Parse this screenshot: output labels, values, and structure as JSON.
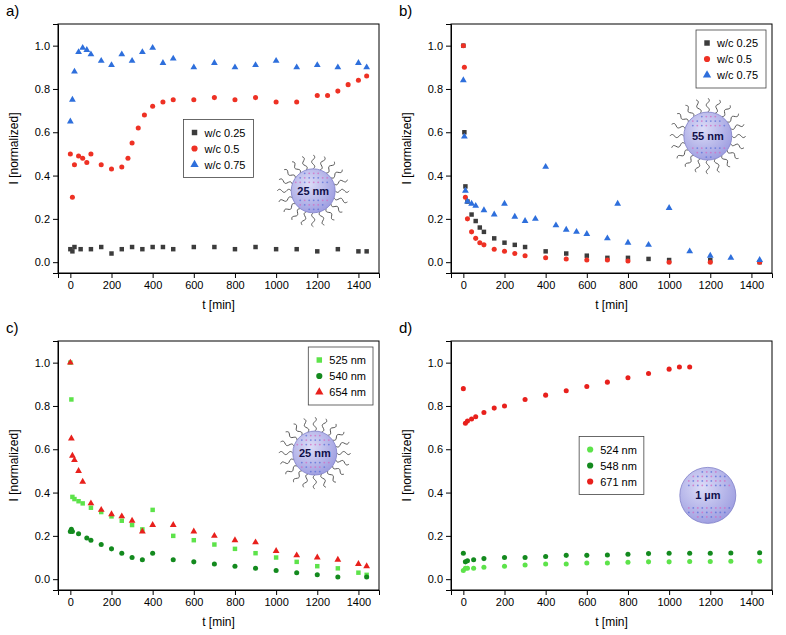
{
  "chart_data": [
    {
      "type": "scatter",
      "panel_label": "a)",
      "inset_label": "25 nm",
      "x_label": "t [min]",
      "y_label": "I [normalized]",
      "xlim": [
        -60,
        1500
      ],
      "ylim": [
        -0.05,
        1.1
      ],
      "xticks": [
        0,
        200,
        400,
        600,
        800,
        1000,
        1200,
        1400
      ],
      "yticks": [
        {
          "value": 0,
          "label": "0.0"
        },
        {
          "value": 0.2,
          "label": "0.2"
        },
        {
          "value": 0.4,
          "label": "0.4"
        },
        {
          "value": 0.6,
          "label": "0.6"
        },
        {
          "value": 0.8,
          "label": "0.8"
        },
        {
          "value": 1,
          "label": "1.0"
        }
      ],
      "grid": false,
      "legend": "center",
      "series": [
        {
          "name": "w/c 0.25",
          "color": "#3c3c3c",
          "marker": "square",
          "x": [
            0,
            10,
            20,
            50,
            100,
            150,
            200,
            250,
            300,
            350,
            400,
            450,
            500,
            600,
            700,
            800,
            900,
            1000,
            1100,
            1200,
            1300,
            1400,
            1440
          ],
          "values": [
            0.06,
            0.05,
            0.07,
            0.06,
            0.06,
            0.07,
            0.04,
            0.06,
            0.07,
            0.06,
            0.07,
            0.07,
            0.06,
            0.07,
            0.07,
            0.06,
            0.07,
            0.06,
            0.06,
            0.05,
            0.06,
            0.05,
            0.05
          ]
        },
        {
          "name": "w/c 0.5",
          "color": "#ee3124",
          "marker": "circle",
          "x": [
            0,
            10,
            20,
            40,
            60,
            80,
            100,
            150,
            200,
            250,
            280,
            300,
            330,
            360,
            400,
            450,
            500,
            600,
            700,
            800,
            900,
            1000,
            1100,
            1200,
            1250,
            1300,
            1350,
            1400,
            1440
          ],
          "values": [
            0.5,
            0.3,
            0.45,
            0.49,
            0.48,
            0.46,
            0.5,
            0.45,
            0.43,
            0.44,
            0.48,
            0.55,
            0.62,
            0.68,
            0.72,
            0.74,
            0.75,
            0.75,
            0.76,
            0.75,
            0.76,
            0.74,
            0.74,
            0.77,
            0.77,
            0.79,
            0.82,
            0.84,
            0.86
          ]
        },
        {
          "name": "w/c 0.75",
          "color": "#2e6fdc",
          "marker": "triangle",
          "x": [
            0,
            10,
            20,
            40,
            60,
            80,
            100,
            150,
            200,
            250,
            300,
            350,
            400,
            450,
            500,
            600,
            700,
            800,
            900,
            1000,
            1100,
            1200,
            1300,
            1400,
            1440
          ],
          "values": [
            0.65,
            0.75,
            0.88,
            0.97,
            0.99,
            0.98,
            0.96,
            0.93,
            0.91,
            0.96,
            0.93,
            0.97,
            0.99,
            0.92,
            0.94,
            0.9,
            0.92,
            0.9,
            0.91,
            0.93,
            0.9,
            0.91,
            0.9,
            0.92,
            0.9
          ]
        }
      ]
    },
    {
      "type": "scatter",
      "panel_label": "b)",
      "inset_label": "55 nm",
      "x_label": "t [min]",
      "y_label": "I [normalized]",
      "xlim": [
        -60,
        1500
      ],
      "ylim": [
        -0.05,
        1.1
      ],
      "xticks": [
        0,
        200,
        400,
        600,
        800,
        1000,
        1200,
        1400
      ],
      "yticks": [
        {
          "value": 0,
          "label": "0.0"
        },
        {
          "value": 0.2,
          "label": "0.2"
        },
        {
          "value": 0.4,
          "label": "0.4"
        },
        {
          "value": 0.6,
          "label": "0.6"
        },
        {
          "value": 0.8,
          "label": "0.8"
        },
        {
          "value": 1,
          "label": "1.0"
        }
      ],
      "grid": false,
      "legend": "upper right",
      "series": [
        {
          "name": "w/c 0.25",
          "color": "#3c3c3c",
          "marker": "square",
          "x": [
            0,
            5,
            10,
            20,
            40,
            60,
            80,
            100,
            150,
            200,
            250,
            300,
            400,
            500,
            600,
            700,
            800,
            900,
            1000,
            1200,
            1440
          ],
          "values": [
            1.0,
            0.6,
            0.35,
            0.28,
            0.22,
            0.19,
            0.16,
            0.14,
            0.11,
            0.09,
            0.08,
            0.07,
            0.05,
            0.04,
            0.03,
            0.02,
            0.02,
            0.015,
            0.01,
            0.01,
            0.0
          ]
        },
        {
          "name": "w/c 0.5",
          "color": "#ee3124",
          "marker": "circle",
          "x": [
            0,
            5,
            10,
            20,
            40,
            60,
            80,
            100,
            150,
            200,
            250,
            300,
            400,
            500,
            600,
            700,
            800,
            1000,
            1200,
            1440
          ],
          "values": [
            1.0,
            0.9,
            0.3,
            0.2,
            0.14,
            0.11,
            0.09,
            0.08,
            0.06,
            0.05,
            0.04,
            0.03,
            0.02,
            0.015,
            0.01,
            0.01,
            0.005,
            0.0,
            0.0,
            0.0
          ]
        },
        {
          "name": "w/c 0.75",
          "color": "#2e6fdc",
          "marker": "triangle",
          "x": [
            0,
            5,
            10,
            20,
            40,
            60,
            100,
            150,
            200,
            250,
            300,
            350,
            400,
            450,
            500,
            550,
            600,
            700,
            750,
            800,
            900,
            1000,
            1100,
            1200,
            1300,
            1440
          ],
          "values": [
            0.84,
            0.58,
            0.33,
            0.28,
            0.27,
            0.26,
            0.24,
            0.22,
            0.27,
            0.21,
            0.19,
            0.2,
            0.44,
            0.17,
            0.15,
            0.14,
            0.13,
            0.11,
            0.27,
            0.09,
            0.08,
            0.25,
            0.05,
            0.03,
            0.02,
            0.01
          ]
        }
      ]
    },
    {
      "type": "scatter",
      "panel_label": "c)",
      "inset_label": "25 nm",
      "x_label": "t [min]",
      "y_label": "I [normalized]",
      "xlim": [
        -60,
        1500
      ],
      "ylim": [
        -0.05,
        1.1
      ],
      "xticks": [
        0,
        200,
        400,
        600,
        800,
        1000,
        1200,
        1400
      ],
      "yticks": [
        {
          "value": 0,
          "label": "0.0"
        },
        {
          "value": 0.2,
          "label": "0.2"
        },
        {
          "value": 0.4,
          "label": "0.4"
        },
        {
          "value": 0.6,
          "label": "0.6"
        },
        {
          "value": 0.8,
          "label": "0.8"
        },
        {
          "value": 1,
          "label": "1.0"
        }
      ],
      "grid": false,
      "legend": "upper right",
      "series": [
        {
          "name": "525 nm",
          "color": "#5de34a",
          "marker": "square",
          "x": [
            0,
            5,
            10,
            20,
            40,
            60,
            100,
            150,
            200,
            250,
            300,
            350,
            400,
            500,
            600,
            700,
            800,
            900,
            1000,
            1100,
            1200,
            1300,
            1400,
            1440
          ],
          "values": [
            1.0,
            0.83,
            0.38,
            0.37,
            0.36,
            0.35,
            0.33,
            0.31,
            0.29,
            0.27,
            0.25,
            0.23,
            0.32,
            0.2,
            0.18,
            0.16,
            0.14,
            0.12,
            0.1,
            0.08,
            0.06,
            0.05,
            0.03,
            0.02
          ]
        },
        {
          "name": "540 nm",
          "color": "#138a1e",
          "marker": "circle",
          "x": [
            0,
            5,
            10,
            40,
            80,
            100,
            150,
            200,
            250,
            300,
            350,
            400,
            500,
            600,
            700,
            800,
            900,
            1000,
            1100,
            1200,
            1300,
            1440
          ],
          "values": [
            0.22,
            0.23,
            0.22,
            0.21,
            0.19,
            0.18,
            0.16,
            0.14,
            0.12,
            0.1,
            0.09,
            0.12,
            0.09,
            0.08,
            0.07,
            0.06,
            0.05,
            0.04,
            0.03,
            0.02,
            0.01,
            0.01
          ]
        },
        {
          "name": "654 nm",
          "color": "#e8201c",
          "marker": "triangle",
          "x": [
            0,
            5,
            10,
            20,
            40,
            60,
            100,
            150,
            200,
            250,
            300,
            350,
            400,
            500,
            600,
            700,
            800,
            900,
            1000,
            1100,
            1200,
            1300,
            1400,
            1440
          ],
          "values": [
            1.0,
            0.65,
            0.57,
            0.55,
            0.5,
            0.45,
            0.35,
            0.32,
            0.3,
            0.29,
            0.27,
            0.22,
            0.25,
            0.25,
            0.22,
            0.2,
            0.18,
            0.17,
            0.13,
            0.11,
            0.1,
            0.09,
            0.07,
            0.06
          ]
        }
      ]
    },
    {
      "type": "scatter",
      "panel_label": "d)",
      "inset_label": "1 µm",
      "x_label": "t [min]",
      "y_label": "I [normalized]",
      "xlim": [
        -60,
        1500
      ],
      "ylim": [
        -0.05,
        1.1
      ],
      "xticks": [
        0,
        200,
        400,
        600,
        800,
        1000,
        1200,
        1400
      ],
      "yticks": [
        {
          "value": 0,
          "label": "0.0"
        },
        {
          "value": 0.2,
          "label": "0.2"
        },
        {
          "value": 0.4,
          "label": "0.4"
        },
        {
          "value": 0.6,
          "label": "0.6"
        },
        {
          "value": 0.8,
          "label": "0.8"
        },
        {
          "value": 1,
          "label": "1.0"
        }
      ],
      "grid": false,
      "legend": "center",
      "series": [
        {
          "name": "524 nm",
          "color": "#5de34a",
          "marker": "circle",
          "x": [
            0,
            10,
            20,
            50,
            100,
            200,
            300,
            400,
            500,
            600,
            700,
            800,
            900,
            1000,
            1100,
            1200,
            1300,
            1440
          ],
          "values": [
            0.04,
            0.05,
            0.05,
            0.05,
            0.055,
            0.06,
            0.065,
            0.07,
            0.07,
            0.075,
            0.075,
            0.078,
            0.08,
            0.08,
            0.082,
            0.082,
            0.083,
            0.083
          ]
        },
        {
          "name": "548 nm",
          "color": "#138a1e",
          "marker": "circle",
          "x": [
            0,
            10,
            20,
            50,
            100,
            200,
            300,
            400,
            500,
            600,
            700,
            800,
            900,
            1000,
            1100,
            1200,
            1300,
            1440
          ],
          "values": [
            0.12,
            0.08,
            0.085,
            0.09,
            0.095,
            0.1,
            0.1,
            0.105,
            0.11,
            0.11,
            0.112,
            0.115,
            0.118,
            0.12,
            0.12,
            0.12,
            0.121,
            0.122
          ]
        },
        {
          "name": "671 nm",
          "color": "#e8201c",
          "marker": "circle",
          "x": [
            0,
            10,
            20,
            40,
            60,
            100,
            150,
            200,
            300,
            400,
            500,
            600,
            700,
            800,
            900,
            1000,
            1050,
            1100
          ],
          "values": [
            0.88,
            0.72,
            0.73,
            0.74,
            0.75,
            0.77,
            0.79,
            0.8,
            0.83,
            0.85,
            0.87,
            0.89,
            0.91,
            0.93,
            0.95,
            0.97,
            0.98,
            0.98
          ]
        }
      ]
    }
  ]
}
